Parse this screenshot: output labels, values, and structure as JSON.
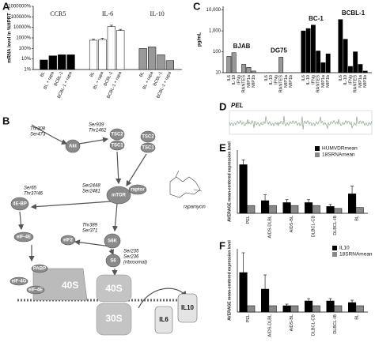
{
  "panels": [
    "A",
    "B",
    "C",
    "D",
    "E",
    "F"
  ],
  "chart_data": [
    {
      "type": "bar",
      "group_by": "series",
      "log_scale": true,
      "ylabel": "mRNA level in %HPRT",
      "categories": [
        "BL",
        "BL + rapa",
        "BCBL-1",
        "BCBL-1 + rapa"
      ],
      "series": [
        {
          "name": "CCR5",
          "color": "#000000",
          "values": [
            8,
            20,
            25,
            25
          ]
        },
        {
          "name": "IL-6",
          "color": "#ffffff",
          "values": [
            600,
            700,
            12000,
            5000
          ],
          "errors": [
            150,
            200,
            4000,
            1500
          ]
        },
        {
          "name": "IL-10",
          "color": "#999999",
          "values": [
            100,
            140,
            25,
            7
          ]
        }
      ],
      "ylim": [
        1,
        1000000
      ],
      "yticks": [
        {
          "value": 1,
          "label": "1%"
        },
        {
          "value": 10,
          "label": "10%"
        },
        {
          "value": 100,
          "label": "100%"
        },
        {
          "value": 1000,
          "label": "1000%"
        },
        {
          "value": 10000,
          "label": "10000%"
        },
        {
          "value": 100000,
          "label": "100000%"
        },
        {
          "value": 1000000,
          "label": "1000000%"
        }
      ]
    },
    {
      "type": "bar",
      "group_by": "series",
      "log_scale": true,
      "ylabel": "pg/mL",
      "categories": [
        "IL6",
        "IL-10",
        "IFNg",
        "RANTES",
        "MIP1a",
        "MIP1b"
      ],
      "series": [
        {
          "name": "BJAB",
          "color": "#999999",
          "values": [
            60,
            90,
            10,
            25,
            18,
            12
          ]
        },
        {
          "name": "DG75",
          "color": "#999999",
          "values": [
            10,
            10,
            10,
            55,
            10,
            10
          ]
        },
        {
          "name": "BC-1",
          "color": "#000000",
          "values": [
            1000,
            1300,
            1900,
            110,
            30,
            80
          ]
        },
        {
          "name": "BCBL-1",
          "color": "#000000",
          "values": [
            3500,
            400,
            20,
            100,
            25,
            12
          ]
        }
      ],
      "ylim": [
        10,
        15000
      ],
      "yticks": [
        10,
        100,
        {
          "value": 1000,
          "label": "1,000"
        },
        {
          "value": 10000,
          "label": "10,000"
        }
      ]
    },
    {
      "type": "bar",
      "group_by": "category",
      "ylabel": "AVERAGE mean-centered expression level",
      "categories": [
        "PEL",
        "AIDS-DLBL",
        "AIDS-BL",
        "DLBCL-CB",
        "DLBCL-IB",
        "BL"
      ],
      "series": [
        {
          "name": "HUMVDRmean",
          "color": "#000000",
          "values": [
            5,
            1.3,
            1.1,
            1.1,
            0.7,
            2
          ],
          "errors": [
            0.5,
            0.6,
            0.3,
            0.3,
            0.2,
            0.8
          ]
        },
        {
          "name": "18SRNAmean",
          "color": "#888888",
          "values": [
            0.8,
            0.8,
            0.8,
            0.8,
            0.5,
            0.6
          ]
        }
      ],
      "ylim": [
        0,
        6.5
      ]
    },
    {
      "type": "bar",
      "group_by": "category",
      "ylabel": "AVERAGE mean-centered expression level",
      "categories": [
        "PEL",
        "AIDS-DLBL",
        "AIDS-BL",
        "DLBCL-CB",
        "DLBCL-IB",
        "BL"
      ],
      "series": [
        {
          "name": "IL10",
          "color": "#000000",
          "values": [
            5,
            2.9,
            0.8,
            1.4,
            1.4,
            1.2
          ],
          "errors": [
            2.5,
            1.8,
            0.2,
            0.3,
            0.3,
            0.3
          ]
        },
        {
          "name": "18SRNAmean",
          "color": "#888888",
          "values": [
            0.8,
            0.8,
            0.8,
            0.8,
            0.8,
            0.8
          ]
        }
      ],
      "ylim": [
        0,
        8
      ]
    }
  ],
  "trace": {
    "label": "PEL"
  },
  "diagram": {
    "akt": "Akt",
    "akt_sites": [
      "Thr308",
      "Ser473"
    ],
    "tsc2": "TSC2",
    "tsc1": "TSC1",
    "tsc_sites": [
      "Ser939",
      "Thr1462"
    ],
    "mtor": "mTOR",
    "raptor": "raptor",
    "mtor_sites": [
      "Ser2448",
      "Ser2481"
    ],
    "rapamycin": "rapamycin",
    "s6k": "S6K",
    "s6k_sites": [
      "Thr389",
      "Ser371"
    ],
    "ebp": "4E-BP",
    "ebp_sites": [
      "Ser65",
      "Thr37/46"
    ],
    "eif4e": "eIF-4E",
    "eif4g": "eIF-4G",
    "eif2": "eIF2",
    "pabp": "PABP",
    "s6": "S6",
    "s6_sites": [
      "Ser235",
      "Ser236"
    ],
    "ribosomal": "(ribosomal)",
    "r40s": "40S",
    "r30s": "30S",
    "il6": "IL6",
    "il10": "IL10"
  }
}
